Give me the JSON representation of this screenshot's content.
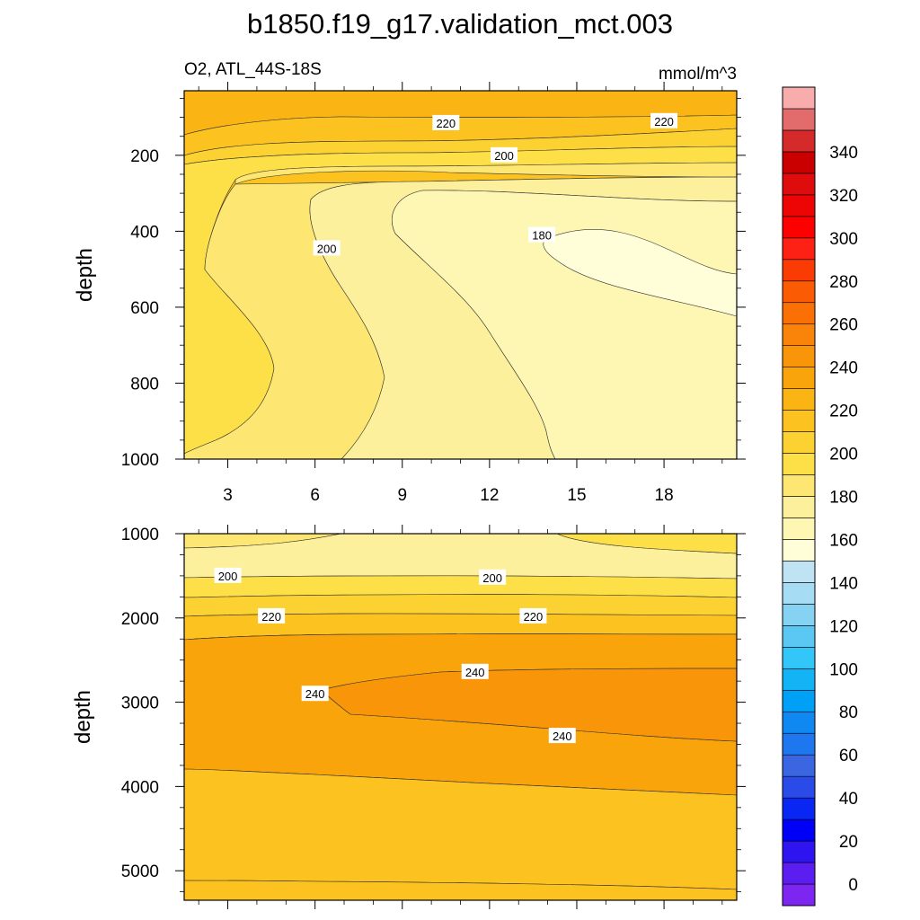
{
  "title": "b1850.f19_g17.validation_mct.003",
  "left_string": "O2, ATL_44S-18S",
  "right_string": "mmol/m^3",
  "chart_data": [
    {
      "type": "contour",
      "panel": "upper",
      "variable": "O2",
      "region": "ATL_44S-18S",
      "units": "mmol/m^3",
      "xlabel": "",
      "ylabel": "depth",
      "xlim": [
        1.5,
        20.5
      ],
      "ylim": [
        1000,
        0
      ],
      "y_visible_top": 30,
      "xticks": [
        3,
        6,
        9,
        12,
        15,
        18
      ],
      "xtick_labels": [
        "3",
        "6",
        "9",
        "12",
        "15",
        "18"
      ],
      "yticks": [
        200,
        400,
        600,
        800,
        1000
      ],
      "ytick_labels": [
        "200",
        "400",
        "600",
        "800",
        "1000"
      ],
      "contour_levels": [
        0,
        10,
        20,
        30,
        40,
        50,
        60,
        70,
        80,
        90,
        100,
        110,
        120,
        130,
        140,
        150,
        160,
        170,
        180,
        190,
        200,
        210,
        220,
        230,
        240,
        250,
        260,
        270,
        280,
        290,
        300,
        310,
        320,
        330,
        340,
        350
      ],
      "contour_labels": [
        {
          "text": "220",
          "x": 10.5,
          "y": 115
        },
        {
          "text": "220",
          "x": 18.0,
          "y": 110
        },
        {
          "text": "200",
          "x": 12.5,
          "y": 200
        },
        {
          "text": "200",
          "x": 6.4,
          "y": 445
        },
        {
          "text": "180",
          "x": 13.8,
          "y": 410
        }
      ]
    },
    {
      "type": "contour",
      "panel": "lower",
      "variable": "O2",
      "region": "ATL_44S-18S",
      "units": "mmol/m^3",
      "xlabel": "",
      "ylabel": "depth",
      "xlim": [
        1.5,
        20.5
      ],
      "ylim": [
        1000,
        5350
      ],
      "xticks": [
        3,
        6,
        9,
        12,
        15,
        18
      ],
      "yticks": [
        1000,
        2000,
        3000,
        4000,
        5000
      ],
      "ytick_labels": [
        "1000",
        "2000",
        "3000",
        "4000",
        "5000"
      ],
      "contour_labels": [
        {
          "text": "200",
          "x": 3.0,
          "y": 1500
        },
        {
          "text": "200",
          "x": 12.1,
          "y": 1520
        },
        {
          "text": "220",
          "x": 4.5,
          "y": 1980
        },
        {
          "text": "220",
          "x": 13.5,
          "y": 1980
        },
        {
          "text": "240",
          "x": 11.5,
          "y": 2640
        },
        {
          "text": "240",
          "x": 6.0,
          "y": 2900
        },
        {
          "text": "240",
          "x": 14.5,
          "y": 3400
        }
      ]
    }
  ],
  "colorbar": {
    "labels": [
      "0",
      "20",
      "40",
      "60",
      "80",
      "100",
      "120",
      "140",
      "160",
      "180",
      "200",
      "220",
      "240",
      "260",
      "280",
      "300",
      "320",
      "340"
    ],
    "colors": [
      "#7d26f2",
      "#5c1ef0",
      "#2e14ef",
      "#0000f6",
      "#0a26f2",
      "#2a4be8",
      "#3a66e2",
      "#1f77ef",
      "#1088f2",
      "#00a0f6",
      "#13b4f5",
      "#33c6f8",
      "#5bc8f4",
      "#86d2f2",
      "#a6dcf4",
      "#bfe3f2",
      "#fffed8",
      "#fef6b3",
      "#fdf09c",
      "#fde772",
      "#fde047",
      "#fcd232",
      "#fcc21f",
      "#fab414",
      "#f9a40b",
      "#f99508",
      "#f98409",
      "#fa7005",
      "#fa5b03",
      "#fa3b03",
      "#fd2015",
      "#fe0000",
      "#ed0505",
      "#de0c0c",
      "#ca0000",
      "#d42a2a",
      "#e26b6b",
      "#f9acac"
    ]
  }
}
